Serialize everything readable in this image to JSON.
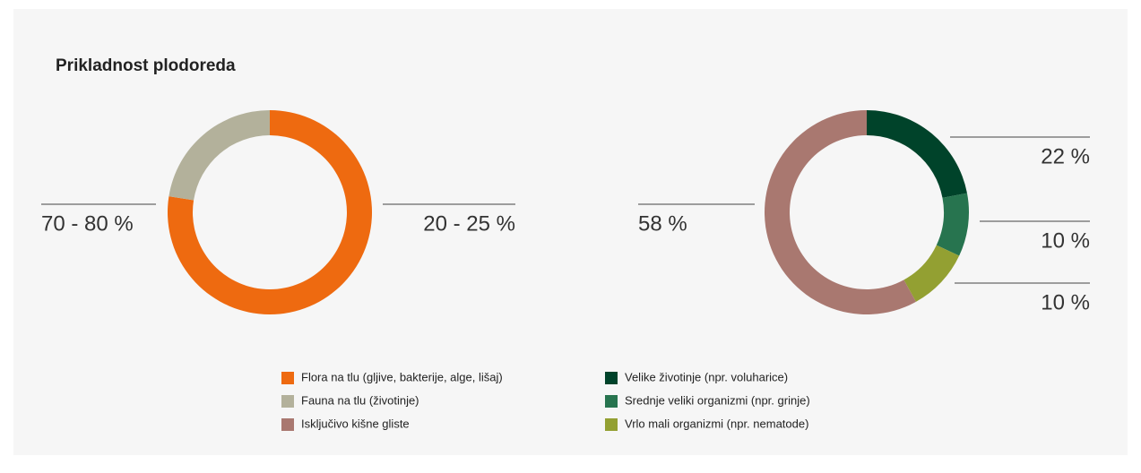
{
  "title": "Prikladnost plodoreda",
  "chart_data": [
    {
      "type": "pie",
      "categories": [
        "Flora na tlu (gljive, bakterije, alge, lišaj)",
        "Fauna na tlu (životinje)"
      ],
      "values": [
        77.5,
        22.5
      ],
      "value_labels": [
        "70 - 80 %",
        "20 - 25 %"
      ],
      "colors": [
        "#ee6a10",
        "#b3b19b"
      ]
    },
    {
      "type": "pie",
      "categories": [
        "Velike životinje (npr. voluharice)",
        "Srednje veliki organizmi (npr. grinje)",
        "Vrlo mali organizmi (npr. nematode)",
        "Isključivo kišne gliste"
      ],
      "values": [
        22,
        10,
        10,
        58
      ],
      "value_labels": [
        "22 %",
        "10 %",
        "10 %",
        "58 %"
      ],
      "colors": [
        "#00432a",
        "#27744f",
        "#93a032",
        "#a97870"
      ]
    }
  ]
}
